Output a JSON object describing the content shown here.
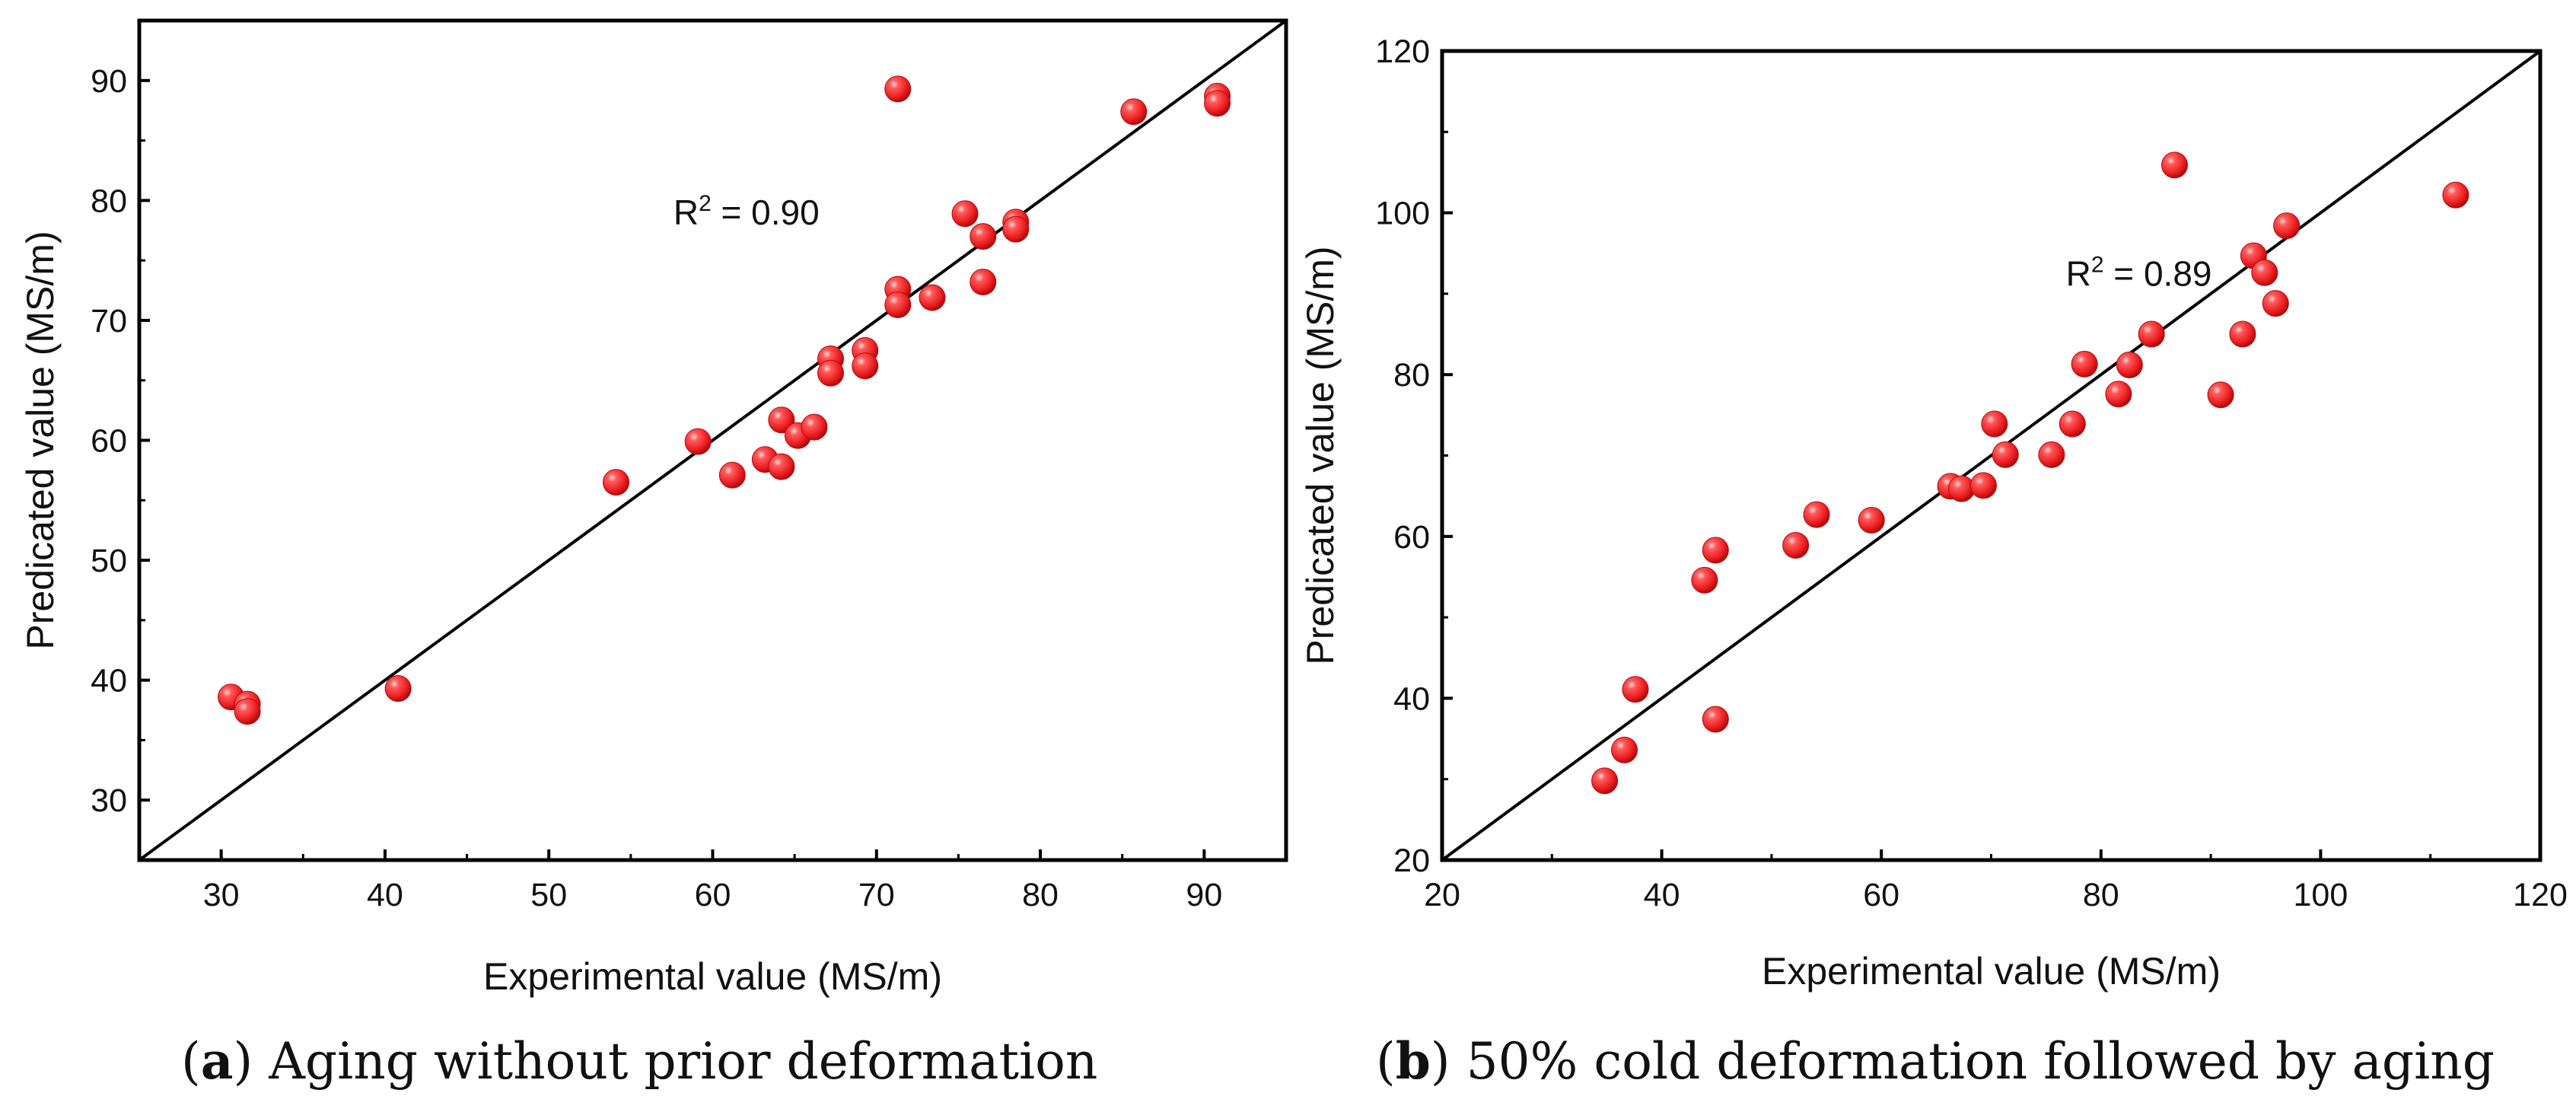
{
  "chart_data": [
    {
      "type": "scatter",
      "panel_label": "a",
      "caption": "Aging without prior deformation",
      "xlabel": "Experimental value (MS/m)",
      "ylabel": "Predicated value (MS/m)",
      "xlim": [
        25,
        95
      ],
      "ylim": [
        25,
        95
      ],
      "x_ticks": [
        30,
        40,
        50,
        60,
        70,
        80,
        90
      ],
      "y_ticks": [
        30,
        40,
        50,
        60,
        70,
        80,
        90
      ],
      "annotation": {
        "prefix": "R",
        "sup": "2",
        "value": " = 0.90",
        "x": 57.6,
        "y": 78
      },
      "reference_line": "y = x",
      "marker_color": "#e8191c",
      "points": [
        {
          "x": 30.6,
          "y": 38.6
        },
        {
          "x": 31.6,
          "y": 38.0
        },
        {
          "x": 31.6,
          "y": 37.4
        },
        {
          "x": 40.8,
          "y": 39.3
        },
        {
          "x": 54.1,
          "y": 56.5
        },
        {
          "x": 59.1,
          "y": 59.9
        },
        {
          "x": 61.2,
          "y": 57.1
        },
        {
          "x": 63.2,
          "y": 58.4
        },
        {
          "x": 64.2,
          "y": 57.8
        },
        {
          "x": 64.2,
          "y": 61.7
        },
        {
          "x": 65.2,
          "y": 60.4
        },
        {
          "x": 66.2,
          "y": 61.1
        },
        {
          "x": 67.2,
          "y": 66.8
        },
        {
          "x": 67.2,
          "y": 65.6
        },
        {
          "x": 69.3,
          "y": 67.5
        },
        {
          "x": 69.3,
          "y": 66.2
        },
        {
          "x": 71.3,
          "y": 72.6
        },
        {
          "x": 71.3,
          "y": 71.3
        },
        {
          "x": 71.3,
          "y": 89.3
        },
        {
          "x": 73.4,
          "y": 71.9
        },
        {
          "x": 75.4,
          "y": 78.9
        },
        {
          "x": 76.5,
          "y": 77.0
        },
        {
          "x": 76.5,
          "y": 73.2
        },
        {
          "x": 78.5,
          "y": 78.2
        },
        {
          "x": 78.5,
          "y": 77.6
        },
        {
          "x": 85.7,
          "y": 87.4
        },
        {
          "x": 90.8,
          "y": 88.7
        },
        {
          "x": 90.8,
          "y": 88.1
        }
      ]
    },
    {
      "type": "scatter",
      "panel_label": "b",
      "caption": "50% cold deformation followed by aging",
      "xlabel": "Experimental value (MS/m)",
      "ylabel": "Predicated value (MS/m)",
      "xlim": [
        20,
        120
      ],
      "ylim": [
        20,
        120
      ],
      "x_ticks": [
        20,
        40,
        60,
        80,
        100,
        120
      ],
      "y_ticks": [
        20,
        40,
        60,
        80,
        100,
        120
      ],
      "annotation": {
        "prefix": "R",
        "sup": "2",
        "value": " = 0.89",
        "x": 76.8,
        "y": 91
      },
      "reference_line": "y = x",
      "marker_color": "#e8191c",
      "points": [
        {
          "x": 34.8,
          "y": 29.8
        },
        {
          "x": 36.6,
          "y": 33.6
        },
        {
          "x": 37.6,
          "y": 41.1
        },
        {
          "x": 43.9,
          "y": 54.6
        },
        {
          "x": 44.9,
          "y": 58.3
        },
        {
          "x": 44.9,
          "y": 37.4
        },
        {
          "x": 52.2,
          "y": 58.9
        },
        {
          "x": 54.1,
          "y": 62.7
        },
        {
          "x": 59.1,
          "y": 62.0
        },
        {
          "x": 66.3,
          "y": 66.2
        },
        {
          "x": 67.3,
          "y": 65.9
        },
        {
          "x": 69.3,
          "y": 66.3
        },
        {
          "x": 70.3,
          "y": 73.9
        },
        {
          "x": 71.3,
          "y": 70.1
        },
        {
          "x": 75.5,
          "y": 70.1
        },
        {
          "x": 77.4,
          "y": 73.9
        },
        {
          "x": 78.5,
          "y": 81.3
        },
        {
          "x": 81.6,
          "y": 77.6
        },
        {
          "x": 82.6,
          "y": 81.2
        },
        {
          "x": 84.6,
          "y": 85.0
        },
        {
          "x": 86.7,
          "y": 105.9
        },
        {
          "x": 90.9,
          "y": 77.5
        },
        {
          "x": 92.9,
          "y": 85.0
        },
        {
          "x": 93.9,
          "y": 94.7
        },
        {
          "x": 94.9,
          "y": 92.6
        },
        {
          "x": 95.9,
          "y": 88.8
        },
        {
          "x": 96.9,
          "y": 98.4
        },
        {
          "x": 112.3,
          "y": 102.2
        }
      ]
    }
  ]
}
